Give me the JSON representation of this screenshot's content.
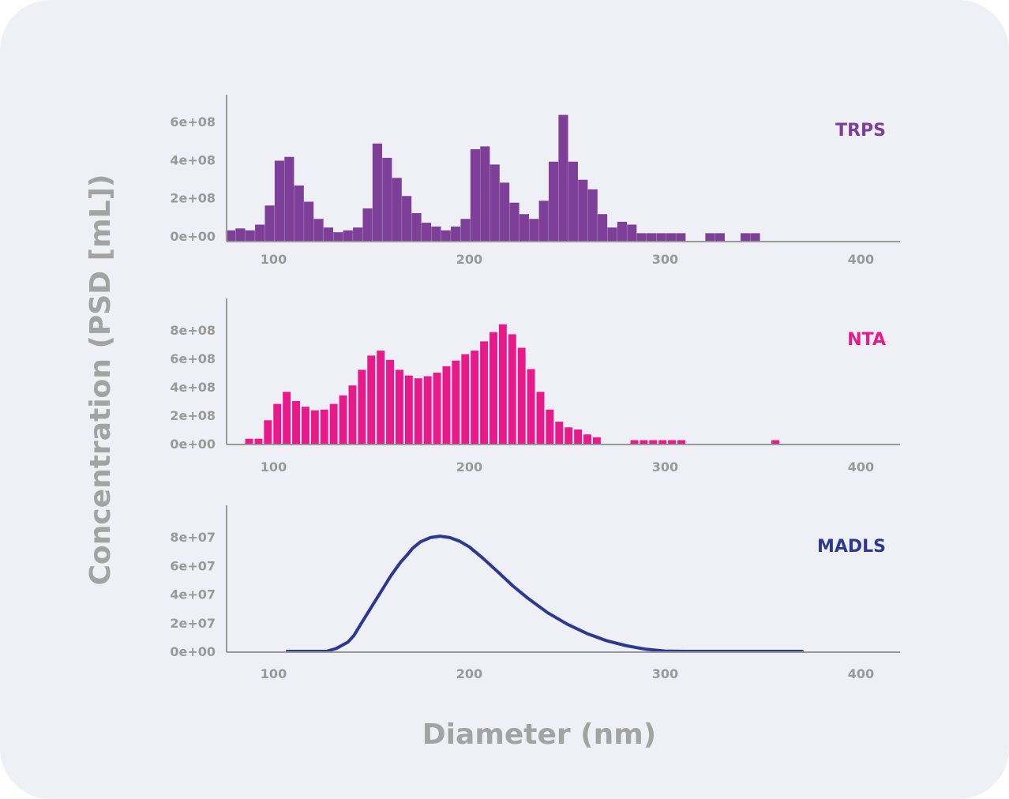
{
  "chart_data": {
    "type": "bar",
    "xlabel": "Diameter (nm)",
    "ylabel": "Concentration (PSD [mL])",
    "xlim": [
      76,
      420
    ],
    "x_ticks": [
      "100",
      "200",
      "300",
      "400"
    ],
    "panels": [
      {
        "label": "TRPS",
        "type": "bar",
        "color": "#7d3f98",
        "ylim": [
          0,
          640000000
        ],
        "y_ticks": [
          "0e+00",
          "2e+08",
          "4e+08",
          "6e+08"
        ],
        "bin_width": 4.9,
        "x": [
          78,
          83,
          88,
          93,
          98,
          103,
          108,
          113,
          118,
          123,
          128,
          133,
          138,
          143,
          148,
          153,
          158,
          163,
          168,
          173,
          178,
          183,
          188,
          193,
          198,
          203,
          208,
          213,
          218,
          223,
          228,
          233,
          238,
          243,
          248,
          253,
          258,
          263,
          268,
          273,
          278,
          283,
          288,
          293,
          298,
          303,
          308,
          323,
          328,
          341,
          346
        ],
        "values": [
          30000000,
          40000000,
          30000000,
          60000000,
          160000000,
          395000000,
          415000000,
          265000000,
          180000000,
          90000000,
          45000000,
          20000000,
          30000000,
          45000000,
          145000000,
          485000000,
          410000000,
          305000000,
          210000000,
          120000000,
          70000000,
          50000000,
          30000000,
          50000000,
          90000000,
          455000000,
          470000000,
          375000000,
          280000000,
          175000000,
          115000000,
          90000000,
          185000000,
          390000000,
          635000000,
          390000000,
          295000000,
          245000000,
          115000000,
          45000000,
          75000000,
          60000000,
          15000000,
          15000000,
          15000000,
          15000000,
          15000000,
          15000000,
          15000000,
          15000000,
          15000000
        ]
      },
      {
        "label": "NTA",
        "type": "bar",
        "color": "#e8198b",
        "ylim": [
          0,
          850000000
        ],
        "y_ticks": [
          "0e+00",
          "2e+08",
          "4e+08",
          "6e+08",
          "8e+08"
        ],
        "bin_width": 4.0,
        "x": [
          87.5,
          92.3,
          97.1,
          101.9,
          106.7,
          111.5,
          116.3,
          121.1,
          125.9,
          130.7,
          135.5,
          140.3,
          145.1,
          149.9,
          154.7,
          159.5,
          164.3,
          169.1,
          173.9,
          178.7,
          183.5,
          188.3,
          193.1,
          197.9,
          202.7,
          207.5,
          212.3,
          217.1,
          221.9,
          226.7,
          231.5,
          236.3,
          241.1,
          245.9,
          250.7,
          255.5,
          260.3,
          265.1,
          284.3,
          289.1,
          293.9,
          298.7,
          303.5,
          308.3,
          356.3
        ],
        "values": [
          35000000,
          35000000,
          165000000,
          280000000,
          365000000,
          300000000,
          260000000,
          235000000,
          240000000,
          280000000,
          340000000,
          410000000,
          520000000,
          620000000,
          655000000,
          590000000,
          520000000,
          480000000,
          460000000,
          475000000,
          500000000,
          545000000,
          585000000,
          630000000,
          655000000,
          720000000,
          785000000,
          840000000,
          770000000,
          675000000,
          525000000,
          365000000,
          240000000,
          155000000,
          115000000,
          100000000,
          65000000,
          45000000,
          25000000,
          25000000,
          25000000,
          25000000,
          25000000,
          25000000,
          25000000
        ]
      },
      {
        "label": "MADLS",
        "type": "line",
        "color": "#2b3990",
        "ylim": [
          0,
          85000000
        ],
        "y_ticks": [
          "0e+00",
          "2e+07",
          "4e+07",
          "6e+07",
          "8e+07"
        ],
        "x": [
          107,
          120,
          127,
          132,
          138,
          141,
          145,
          150,
          155,
          160,
          165,
          168,
          171,
          175,
          180,
          185,
          190,
          195,
          200,
          207,
          215,
          222,
          230,
          240,
          250,
          260,
          270,
          280,
          290,
          300,
          310,
          320,
          340,
          360,
          370
        ],
        "values": [
          0,
          0,
          0,
          2000000,
          6500000,
          11000000,
          20000000,
          31000000,
          42000000,
          53000000,
          62500000,
          67000000,
          72000000,
          76500000,
          79500000,
          80500000,
          79500000,
          77000000,
          73000000,
          65000000,
          55000000,
          46000000,
          37000000,
          27000000,
          19000000,
          12500000,
          7500000,
          4000000,
          1500000,
          200000,
          0,
          0,
          0,
          0,
          0
        ]
      }
    ]
  }
}
